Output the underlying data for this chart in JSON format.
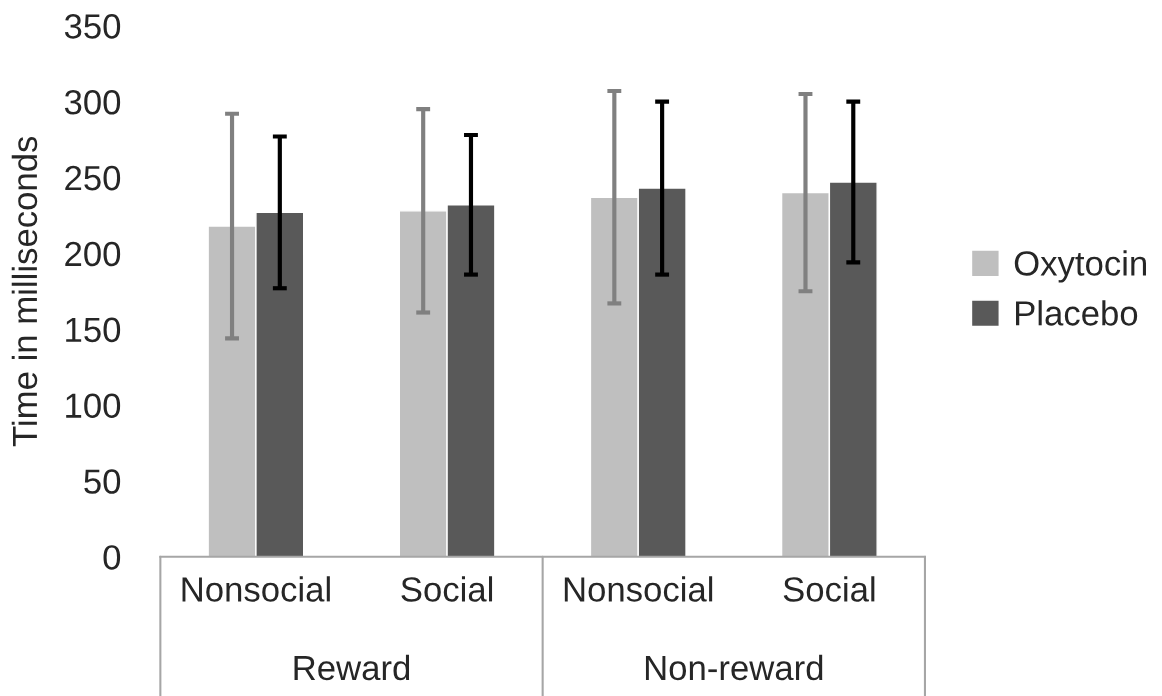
{
  "chart_data": {
    "type": "bar",
    "ylabel": "Time in milliseconds",
    "categories": [
      "Nonsocial",
      "Social",
      "Nonsocial",
      "Social"
    ],
    "series": [
      {
        "name": "Oxytocin",
        "color": "#bfbfbf",
        "values": [
          218,
          228,
          237,
          240
        ],
        "errors": [
          74,
          67,
          70,
          65
        ]
      },
      {
        "name": "Placebo",
        "color": "#595959",
        "values": [
          227,
          232,
          243,
          247
        ],
        "errors": [
          50,
          46,
          57,
          53
        ]
      }
    ],
    "annotations": [
      "Reward",
      "Non-reward"
    ],
    "ylim": [
      0,
      350
    ],
    "yticks": [
      0,
      50,
      100,
      150,
      200,
      250,
      300,
      350
    ],
    "grid": false,
    "legend": "right"
  }
}
